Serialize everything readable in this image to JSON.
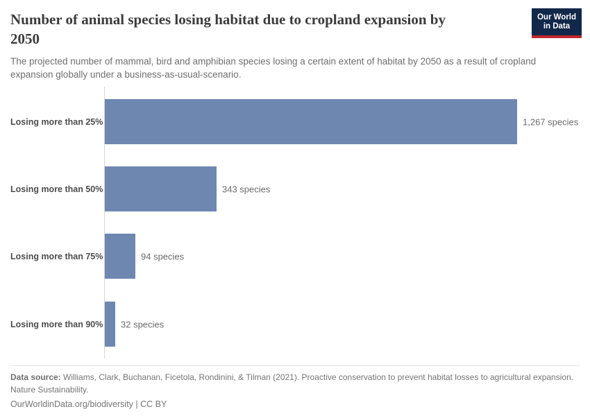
{
  "header": {
    "title": "Number of animal species losing habitat due to cropland expansion by 2050",
    "subtitle": "The projected number of mammal, bird and amphibian species losing a certain extent of habitat by 2050 as a result of cropland expansion globally under a business-as-usual-scenario.",
    "logo": {
      "line1": "Our World",
      "line2": "in Data"
    }
  },
  "chart_data": {
    "type": "bar",
    "orientation": "horizontal",
    "categories": [
      "Losing more than 25%",
      "Losing more than 50%",
      "Losing more than 75%",
      "Losing more than 90%"
    ],
    "values": [
      1267,
      343,
      94,
      32
    ],
    "value_labels": [
      "1,267 species",
      "343 species",
      "94 species",
      "32 species"
    ],
    "xlim": [
      0,
      1267
    ],
    "grid": false,
    "legend": "none",
    "bar_color": "#6d87b1",
    "title": "Number of animal species losing habitat due to cropland expansion by 2050",
    "xlabel": "",
    "ylabel": ""
  },
  "footer": {
    "datasource_label": "Data source:",
    "datasource_text": "Williams, Clark, Buchanan, Ficetola, Rondinini, & Tilman (2021). Proactive conservation to prevent habitat losses to agricultural expansion. Nature Sustainability.",
    "link_text": "OurWorldinData.org/biodiversity",
    "separator": "|",
    "license_text": "CC BY"
  },
  "colors": {
    "bar": "#6d87b1",
    "title": "#3b3b3b",
    "subtitle": "#6e6e6e",
    "axis_line": "#d6d6d6",
    "logo_bg": "#12284a",
    "logo_accent": "#c1272d"
  }
}
